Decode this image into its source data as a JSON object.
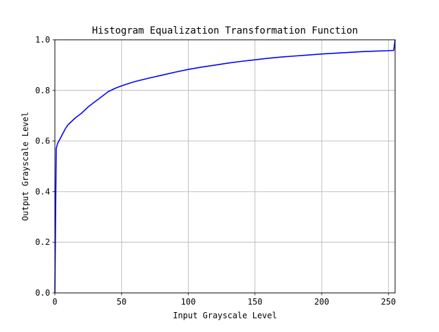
{
  "chart_data": {
    "type": "line",
    "title": "Histogram Equalization Transformation Function",
    "xlabel": "Input Grayscale Level",
    "ylabel": "Output Grayscale Level",
    "xlim": [
      0,
      255
    ],
    "ylim": [
      0.0,
      1.0
    ],
    "xticks": [
      0,
      50,
      100,
      150,
      200,
      250
    ],
    "xtick_labels": [
      "0",
      "50",
      "100",
      "150",
      "200",
      "250"
    ],
    "yticks": [
      0.0,
      0.2,
      0.4,
      0.6,
      0.8,
      1.0
    ],
    "ytick_labels": [
      "0.0",
      "0.2",
      "0.4",
      "0.6",
      "0.8",
      "1.0"
    ],
    "grid": true,
    "series": [
      {
        "color": "#0000ff",
        "x": [
          0,
          1,
          2,
          3,
          5,
          8,
          10,
          15,
          20,
          25,
          30,
          35,
          40,
          45,
          50,
          55,
          60,
          70,
          80,
          90,
          100,
          110,
          120,
          130,
          140,
          150,
          160,
          170,
          180,
          190,
          200,
          210,
          220,
          230,
          240,
          250,
          254,
          255
        ],
        "y": [
          0.0,
          0.57,
          0.59,
          0.6,
          0.62,
          0.65,
          0.665,
          0.69,
          0.71,
          0.735,
          0.755,
          0.775,
          0.795,
          0.808,
          0.818,
          0.827,
          0.835,
          0.848,
          0.86,
          0.872,
          0.883,
          0.892,
          0.9,
          0.908,
          0.915,
          0.921,
          0.927,
          0.932,
          0.936,
          0.94,
          0.944,
          0.947,
          0.95,
          0.953,
          0.955,
          0.957,
          0.958,
          1.0
        ]
      }
    ]
  }
}
